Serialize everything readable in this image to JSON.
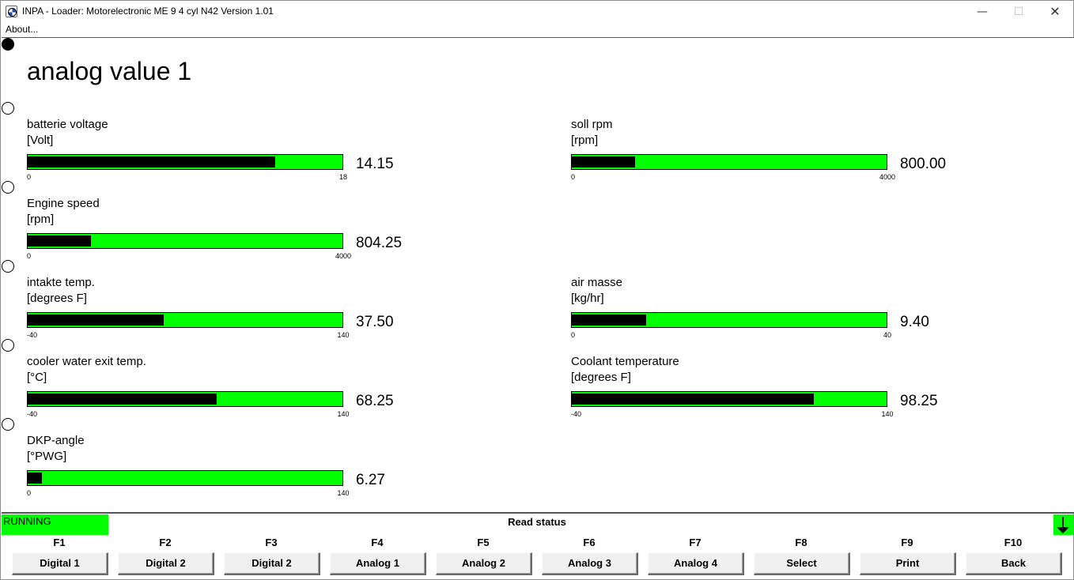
{
  "window": {
    "title": "INPA - Loader:  Motorelectronic ME 9  4 cyl N42 Version 1.01",
    "minimize_glyph": "—",
    "maximize_glyph": "☐",
    "close_glyph": "✕",
    "icon": "inpa-app-icon"
  },
  "menu": {
    "about": "About..."
  },
  "page": {
    "title": "analog value 1"
  },
  "gauges": [
    {
      "label": "batterie voltage",
      "unit": "[Volt]",
      "value": "14.15",
      "min": "0",
      "max": "18",
      "fill_fraction": 0.786
    },
    {
      "label": "soll rpm",
      "unit": "[rpm]",
      "value": "800.00",
      "min": "0",
      "max": "4000",
      "fill_fraction": 0.2
    },
    {
      "label": "Engine speed",
      "unit": "[rpm]",
      "value": "804.25",
      "min": "0",
      "max": "4000",
      "fill_fraction": 0.201
    },
    {
      "label": "intakte temp.",
      "unit": "[degrees F]",
      "value": "37.50",
      "min": "-40",
      "max": "140",
      "fill_fraction": 0.431
    },
    {
      "label": "air masse",
      "unit": "[kg/hr]",
      "value": "9.40",
      "min": "0",
      "max": "40",
      "fill_fraction": 0.235
    },
    {
      "label": "cooler water exit temp.",
      "unit": "[°C]",
      "value": "68.25",
      "min": "-40",
      "max": "140",
      "fill_fraction": 0.601
    },
    {
      "label": "Coolant temperature",
      "unit": "[degrees F]",
      "value": "98.25",
      "min": "-40",
      "max": "140",
      "fill_fraction": 0.768
    },
    {
      "label": "DKP-angle",
      "unit": "[°PWG]",
      "value": "6.27",
      "min": "0",
      "max": "140",
      "fill_fraction": 0.045
    }
  ],
  "status": {
    "state": "RUNNING",
    "message": "Read status",
    "state_color": "#00ff00"
  },
  "fkeys": [
    {
      "key": "F1",
      "label": "Digital 1"
    },
    {
      "key": "F2",
      "label": "Digital 2"
    },
    {
      "key": "F3",
      "label": "Digital 2"
    },
    {
      "key": "F4",
      "label": "Analog 1"
    },
    {
      "key": "F5",
      "label": "Analog 2"
    },
    {
      "key": "F6",
      "label": "Analog 3"
    },
    {
      "key": "F7",
      "label": "Analog 4"
    },
    {
      "key": "F8",
      "label": "Select"
    },
    {
      "key": "F9",
      "label": "Print"
    },
    {
      "key": "F10",
      "label": "Back"
    }
  ],
  "colors": {
    "bar_background": "#00ff00",
    "bar_fill": "#000000"
  }
}
